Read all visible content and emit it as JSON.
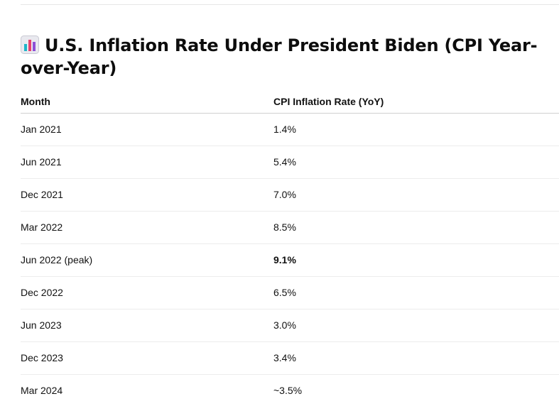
{
  "heading": {
    "icon": "bar-chart-icon",
    "title": "U.S. Inflation Rate Under President Biden (CPI Year-over-Year)"
  },
  "table": {
    "columns": [
      "Month",
      "CPI Inflation Rate (YoY)"
    ],
    "rows": [
      {
        "month": "Jan 2021",
        "rate": "1.4%",
        "emphasis": false
      },
      {
        "month": "Jun 2021",
        "rate": "5.4%",
        "emphasis": false
      },
      {
        "month": "Dec 2021",
        "rate": "7.0%",
        "emphasis": false
      },
      {
        "month": "Mar 2022",
        "rate": "8.5%",
        "emphasis": false
      },
      {
        "month": "Jun 2022 (peak)",
        "rate": "9.1%",
        "emphasis": true
      },
      {
        "month": "Dec 2022",
        "rate": "6.5%",
        "emphasis": false
      },
      {
        "month": "Jun 2023",
        "rate": "3.0%",
        "emphasis": false
      },
      {
        "month": "Dec 2023",
        "rate": "3.4%",
        "emphasis": false
      },
      {
        "month": "Mar 2024",
        "rate": "~3.5%",
        "emphasis": false
      }
    ]
  },
  "colors": {
    "icon_background": "#e9e9ef",
    "icon_bar_pink": "#e8416f",
    "icon_bar_teal": "#1fb5c9",
    "icon_bar_purple": "#8d4fd6",
    "row_divider": "#ececec"
  }
}
